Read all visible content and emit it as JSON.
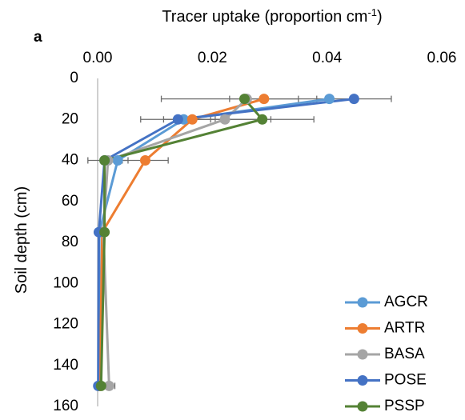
{
  "chart_data": {
    "type": "line",
    "panel_label": "a",
    "xlabel": "Tracer uptake (proportion cm",
    "xlabel_sup": "-1",
    "xlabel_end": ")",
    "ylabel": "Soil depth (cm)",
    "xlim": [
      0,
      0.06
    ],
    "ylim": [
      0,
      160
    ],
    "x_axis_position": "top",
    "y_axis_inverted": true,
    "x_ticks": [
      "0.00",
      "0.02",
      "0.04",
      "0.06"
    ],
    "x_tick_values": [
      0,
      0.02,
      0.04,
      0.06
    ],
    "y_ticks": [
      "0",
      "20",
      "40",
      "60",
      "80",
      "100",
      "120",
      "140",
      "160"
    ],
    "y_tick_values": [
      0,
      20,
      40,
      60,
      80,
      100,
      120,
      140,
      160
    ],
    "grid": false,
    "legend_position": "bottom-right",
    "series": [
      {
        "name": "AGCR",
        "color": "#5B9BD5",
        "points": [
          {
            "depth": 10,
            "x": 0.0404,
            "err": 0.0
          },
          {
            "depth": 20,
            "x": 0.015,
            "err": 0.0
          },
          {
            "depth": 40,
            "x": 0.0035,
            "err": 0.0
          },
          {
            "depth": 75,
            "x": 0.0003,
            "err": 0.0
          },
          {
            "depth": 150,
            "x": 0.0002,
            "err": 0.0
          }
        ]
      },
      {
        "name": "ARTR",
        "color": "#ED7D31",
        "points": [
          {
            "depth": 10,
            "x": 0.029,
            "err": 0.006
          },
          {
            "depth": 20,
            "x": 0.0165,
            "err": 0.005
          },
          {
            "depth": 40,
            "x": 0.0083,
            "err": 0.004
          },
          {
            "depth": 75,
            "x": 0.0008,
            "err": 0.0
          },
          {
            "depth": 150,
            "x": 0.0004,
            "err": 0.0
          }
        ]
      },
      {
        "name": "BASA",
        "color": "#A5A5A5",
        "points": [
          {
            "depth": 10,
            "x": 0.026,
            "err": 0.0
          },
          {
            "depth": 20,
            "x": 0.0222,
            "err": 0.008
          },
          {
            "depth": 40,
            "x": 0.0018,
            "err": 0.0035
          },
          {
            "depth": 75,
            "x": 0.001,
            "err": 0.0
          },
          {
            "depth": 150,
            "x": 0.002,
            "err": 0.001
          }
        ]
      },
      {
        "name": "POSE",
        "color": "#4472C4",
        "points": [
          {
            "depth": 10,
            "x": 0.0447,
            "err": 0.0065
          },
          {
            "depth": 20,
            "x": 0.014,
            "err": 0.0065
          },
          {
            "depth": 40,
            "x": 0.0012,
            "err": 0.0
          },
          {
            "depth": 75,
            "x": 0.0002,
            "err": 0.0
          },
          {
            "depth": 150,
            "x": 0.0001,
            "err": 0.0
          }
        ]
      },
      {
        "name": "PSSP",
        "color": "#548235",
        "points": [
          {
            "depth": 10,
            "x": 0.0256,
            "err": 0.0145
          },
          {
            "depth": 20,
            "x": 0.0287,
            "err": 0.009
          },
          {
            "depth": 40,
            "x": 0.0012,
            "err": 0.0
          },
          {
            "depth": 75,
            "x": 0.0012,
            "err": 0.0
          },
          {
            "depth": 150,
            "x": 0.0006,
            "err": 0.0
          }
        ]
      }
    ]
  }
}
